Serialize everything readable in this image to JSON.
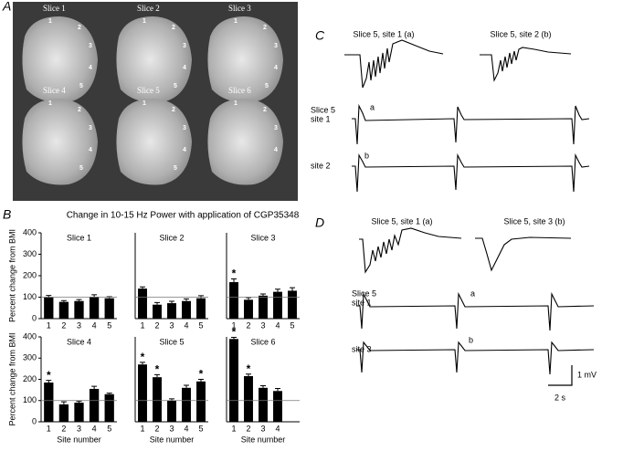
{
  "panel_labels": [
    "A",
    "B",
    "C",
    "D"
  ],
  "panel_a": {
    "slices": [
      {
        "label": "Slice 1",
        "sites": [
          "1",
          "2",
          "3",
          "4",
          "5"
        ]
      },
      {
        "label": "Slice 2",
        "sites": [
          "1",
          "2",
          "3",
          "4",
          "5"
        ]
      },
      {
        "label": "Slice 3",
        "sites": [
          "1",
          "2",
          "3",
          "4",
          "5"
        ]
      },
      {
        "label": "Slice 4",
        "sites": [
          "1",
          "2",
          "3",
          "4",
          "5"
        ]
      },
      {
        "label": "Slice 5",
        "sites": [
          "1",
          "2",
          "3",
          "4",
          "5"
        ]
      },
      {
        "label": "Slice 6",
        "sites": [
          "1",
          "2",
          "3",
          "4"
        ]
      }
    ]
  },
  "panel_b_title": "Change in 10-15 Hz Power with application of CGP35348",
  "chart_data": [
    {
      "type": "bar",
      "title": "Slice 1",
      "y_label": "Percent change from BMI",
      "categories": [
        "1",
        "2",
        "3",
        "4",
        "5"
      ],
      "values": [
        100,
        78,
        82,
        102,
        95
      ],
      "errors": [
        8,
        6,
        7,
        9,
        7
      ],
      "markers": [
        null,
        null,
        null,
        null,
        null
      ],
      "reference_line": 100,
      "color": "#000000",
      "ylim": [
        0,
        400
      ],
      "yticks": [
        0,
        100,
        200,
        300,
        400
      ]
    },
    {
      "type": "bar",
      "title": "Slice 2",
      "categories": [
        "1",
        "2",
        "3",
        "4",
        "5"
      ],
      "values": [
        140,
        65,
        72,
        82,
        95
      ],
      "errors": [
        8,
        10,
        9,
        10,
        12
      ],
      "markers": [
        null,
        null,
        null,
        null,
        null
      ],
      "reference_line": 100,
      "color": "#000000",
      "ylim": [
        0,
        400
      ]
    },
    {
      "type": "bar",
      "title": "Slice 3",
      "categories": [
        "1",
        "2",
        "3",
        "4",
        "5"
      ],
      "values": [
        170,
        88,
        107,
        125,
        130
      ],
      "errors": [
        15,
        10,
        8,
        12,
        14
      ],
      "markers": [
        "*",
        null,
        null,
        null,
        null
      ],
      "reference_line": 100,
      "color": "#000000",
      "ylim": [
        0,
        400
      ]
    },
    {
      "type": "bar",
      "title": "Slice 4",
      "y_label": "Percent change from BMI",
      "x_label": "Site number",
      "categories": [
        "1",
        "2",
        "3",
        "4",
        "5"
      ],
      "values": [
        185,
        82,
        90,
        155,
        130
      ],
      "errors": [
        10,
        12,
        6,
        12,
        5
      ],
      "markers": [
        "*",
        null,
        null,
        null,
        null
      ],
      "reference_line": 100,
      "color": "#000000",
      "ylim": [
        0,
        400
      ],
      "yticks": [
        0,
        100,
        200,
        300,
        400
      ]
    },
    {
      "type": "bar",
      "title": "Slice 5",
      "x_label": "Site number",
      "categories": [
        "1",
        "2",
        "3",
        "4",
        "5"
      ],
      "values": [
        270,
        210,
        100,
        160,
        190
      ],
      "errors": [
        10,
        12,
        8,
        12,
        10
      ],
      "markers": [
        "*",
        "*",
        null,
        null,
        "*"
      ],
      "reference_line": 100,
      "color": "#000000",
      "ylim": [
        0,
        400
      ]
    },
    {
      "type": "bar",
      "title": "Slice 6",
      "x_label": "Site number",
      "categories": [
        "1",
        "2",
        "3",
        "4"
      ],
      "values": [
        390,
        215,
        160,
        145
      ],
      "errors": [
        8,
        10,
        10,
        12
      ],
      "markers": [
        "*",
        "*",
        null,
        null
      ],
      "reference_line": 100,
      "color": "#000000",
      "ylim": [
        0,
        400
      ]
    }
  ],
  "panel_c": {
    "titles": [
      "Slice 5, site 1 (a)",
      "Slice 5, site 2 (b)"
    ],
    "row1": [
      "Slice 5",
      "site 1"
    ],
    "mark_a": "a",
    "mark_b": "b",
    "row2": "site 2"
  },
  "panel_d": {
    "titles": [
      "Slice 5, site 1 (a)",
      "Slice 5, site 3 (b)"
    ],
    "row1": [
      "Slice 5",
      "site 1"
    ],
    "mark_a": "a",
    "mark_b": "b",
    "row2": "site 3",
    "scale_v": "1 mV",
    "scale_t": "2 s"
  }
}
